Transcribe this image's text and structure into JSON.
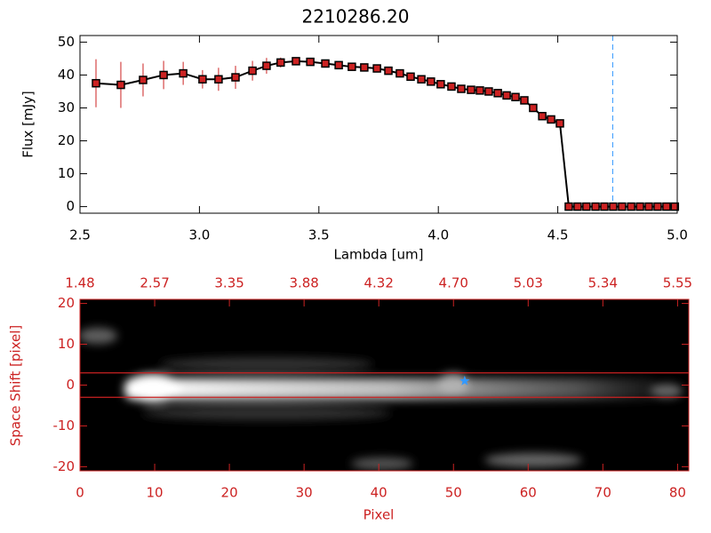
{
  "chart_data": [
    {
      "type": "line",
      "title": "2210286.20",
      "x_label": "Lambda [um]",
      "y_label": "Flux [mJy]",
      "x": [
        2.567,
        2.671,
        2.764,
        2.85,
        2.932,
        3.013,
        3.08,
        3.151,
        3.222,
        3.281,
        3.34,
        3.404,
        3.464,
        3.527,
        3.583,
        3.638,
        3.69,
        3.743,
        3.791,
        3.839,
        3.884,
        3.929,
        3.969,
        4.01,
        4.055,
        4.096,
        4.137,
        4.174,
        4.211,
        4.249,
        4.286,
        4.323,
        4.36,
        4.397,
        4.435,
        4.472,
        4.509,
        4.546,
        4.583,
        4.62,
        4.658,
        4.695,
        4.732,
        4.769,
        4.807,
        4.844,
        4.881,
        4.918,
        4.955,
        4.99
      ],
      "values": [
        37.5,
        37,
        38.5,
        40,
        40.5,
        38.7,
        38.7,
        39.3,
        41.3,
        42.8,
        43.8,
        44.2,
        44,
        43.5,
        43,
        42.5,
        42.3,
        42,
        41.3,
        40.5,
        39.5,
        38.7,
        38,
        37.2,
        36.5,
        35.8,
        35.5,
        35.3,
        35,
        34.5,
        33.8,
        33.3,
        32.3,
        30,
        27.5,
        26.5,
        25.3,
        0,
        0,
        0,
        0,
        0,
        0,
        0,
        0,
        0,
        0,
        0,
        0,
        0
      ],
      "errors": [
        7.3,
        7,
        5,
        4.3,
        3.5,
        2.8,
        3.5,
        3.5,
        3,
        2.4,
        1.5,
        1,
        0.8,
        0.6,
        0.5,
        0.5,
        0.5,
        0.5,
        0.5,
        0.5,
        0.5,
        0.5,
        0.5,
        0.5,
        0.5,
        0.5,
        0.5,
        0.5,
        0.5,
        0.5,
        0.5,
        0.5,
        0.5,
        0.5,
        0.5,
        0.5,
        0.5,
        0,
        0,
        0,
        0,
        0,
        0,
        0,
        0,
        0,
        0,
        0,
        0,
        0
      ],
      "color": "#000000",
      "marker_color": "#cc2222",
      "error_color": "#cc2222",
      "vline": {
        "x": 4.73,
        "color": "#3399ff"
      },
      "xlim": [
        2.5,
        5.0
      ],
      "xticks": [
        {
          "value": 2.5,
          "label": "2.5"
        },
        {
          "value": 3.0,
          "label": "3.0"
        },
        {
          "value": 3.5,
          "label": "3.5"
        },
        {
          "value": 4.0,
          "label": "4.0"
        },
        {
          "value": 4.5,
          "label": "4.5"
        },
        {
          "value": 5.0,
          "label": "5.0"
        }
      ],
      "ylim": [
        -2,
        52
      ],
      "yticks": [
        0,
        10,
        20,
        30,
        40,
        50
      ]
    },
    {
      "type": "image",
      "x_label": "Pixel",
      "y_label": "Space Shift [pixel]",
      "axis_color": "#cc2222",
      "xlim": [
        0,
        81.5
      ],
      "xticks": [
        0,
        10,
        20,
        30,
        40,
        50,
        60,
        70,
        80
      ],
      "x2ticks": [
        {
          "value": 0,
          "label": "1.48"
        },
        {
          "value": 10,
          "label": "2.57"
        },
        {
          "value": 20,
          "label": "3.35"
        },
        {
          "value": 30,
          "label": "3.88"
        },
        {
          "value": 40,
          "label": "4.32"
        },
        {
          "value": 50,
          "label": "4.70"
        },
        {
          "value": 60,
          "label": "5.03"
        },
        {
          "value": 70,
          "label": "5.34"
        },
        {
          "value": 80,
          "label": "5.55"
        }
      ],
      "ylim": [
        -21,
        21
      ],
      "yticks": [
        -20,
        -10,
        0,
        10,
        20
      ],
      "hlines": [
        3,
        -3
      ],
      "hline_color": "#cc2222",
      "marker": {
        "x": 51.5,
        "y": 1,
        "color": "#3399ff"
      }
    }
  ]
}
